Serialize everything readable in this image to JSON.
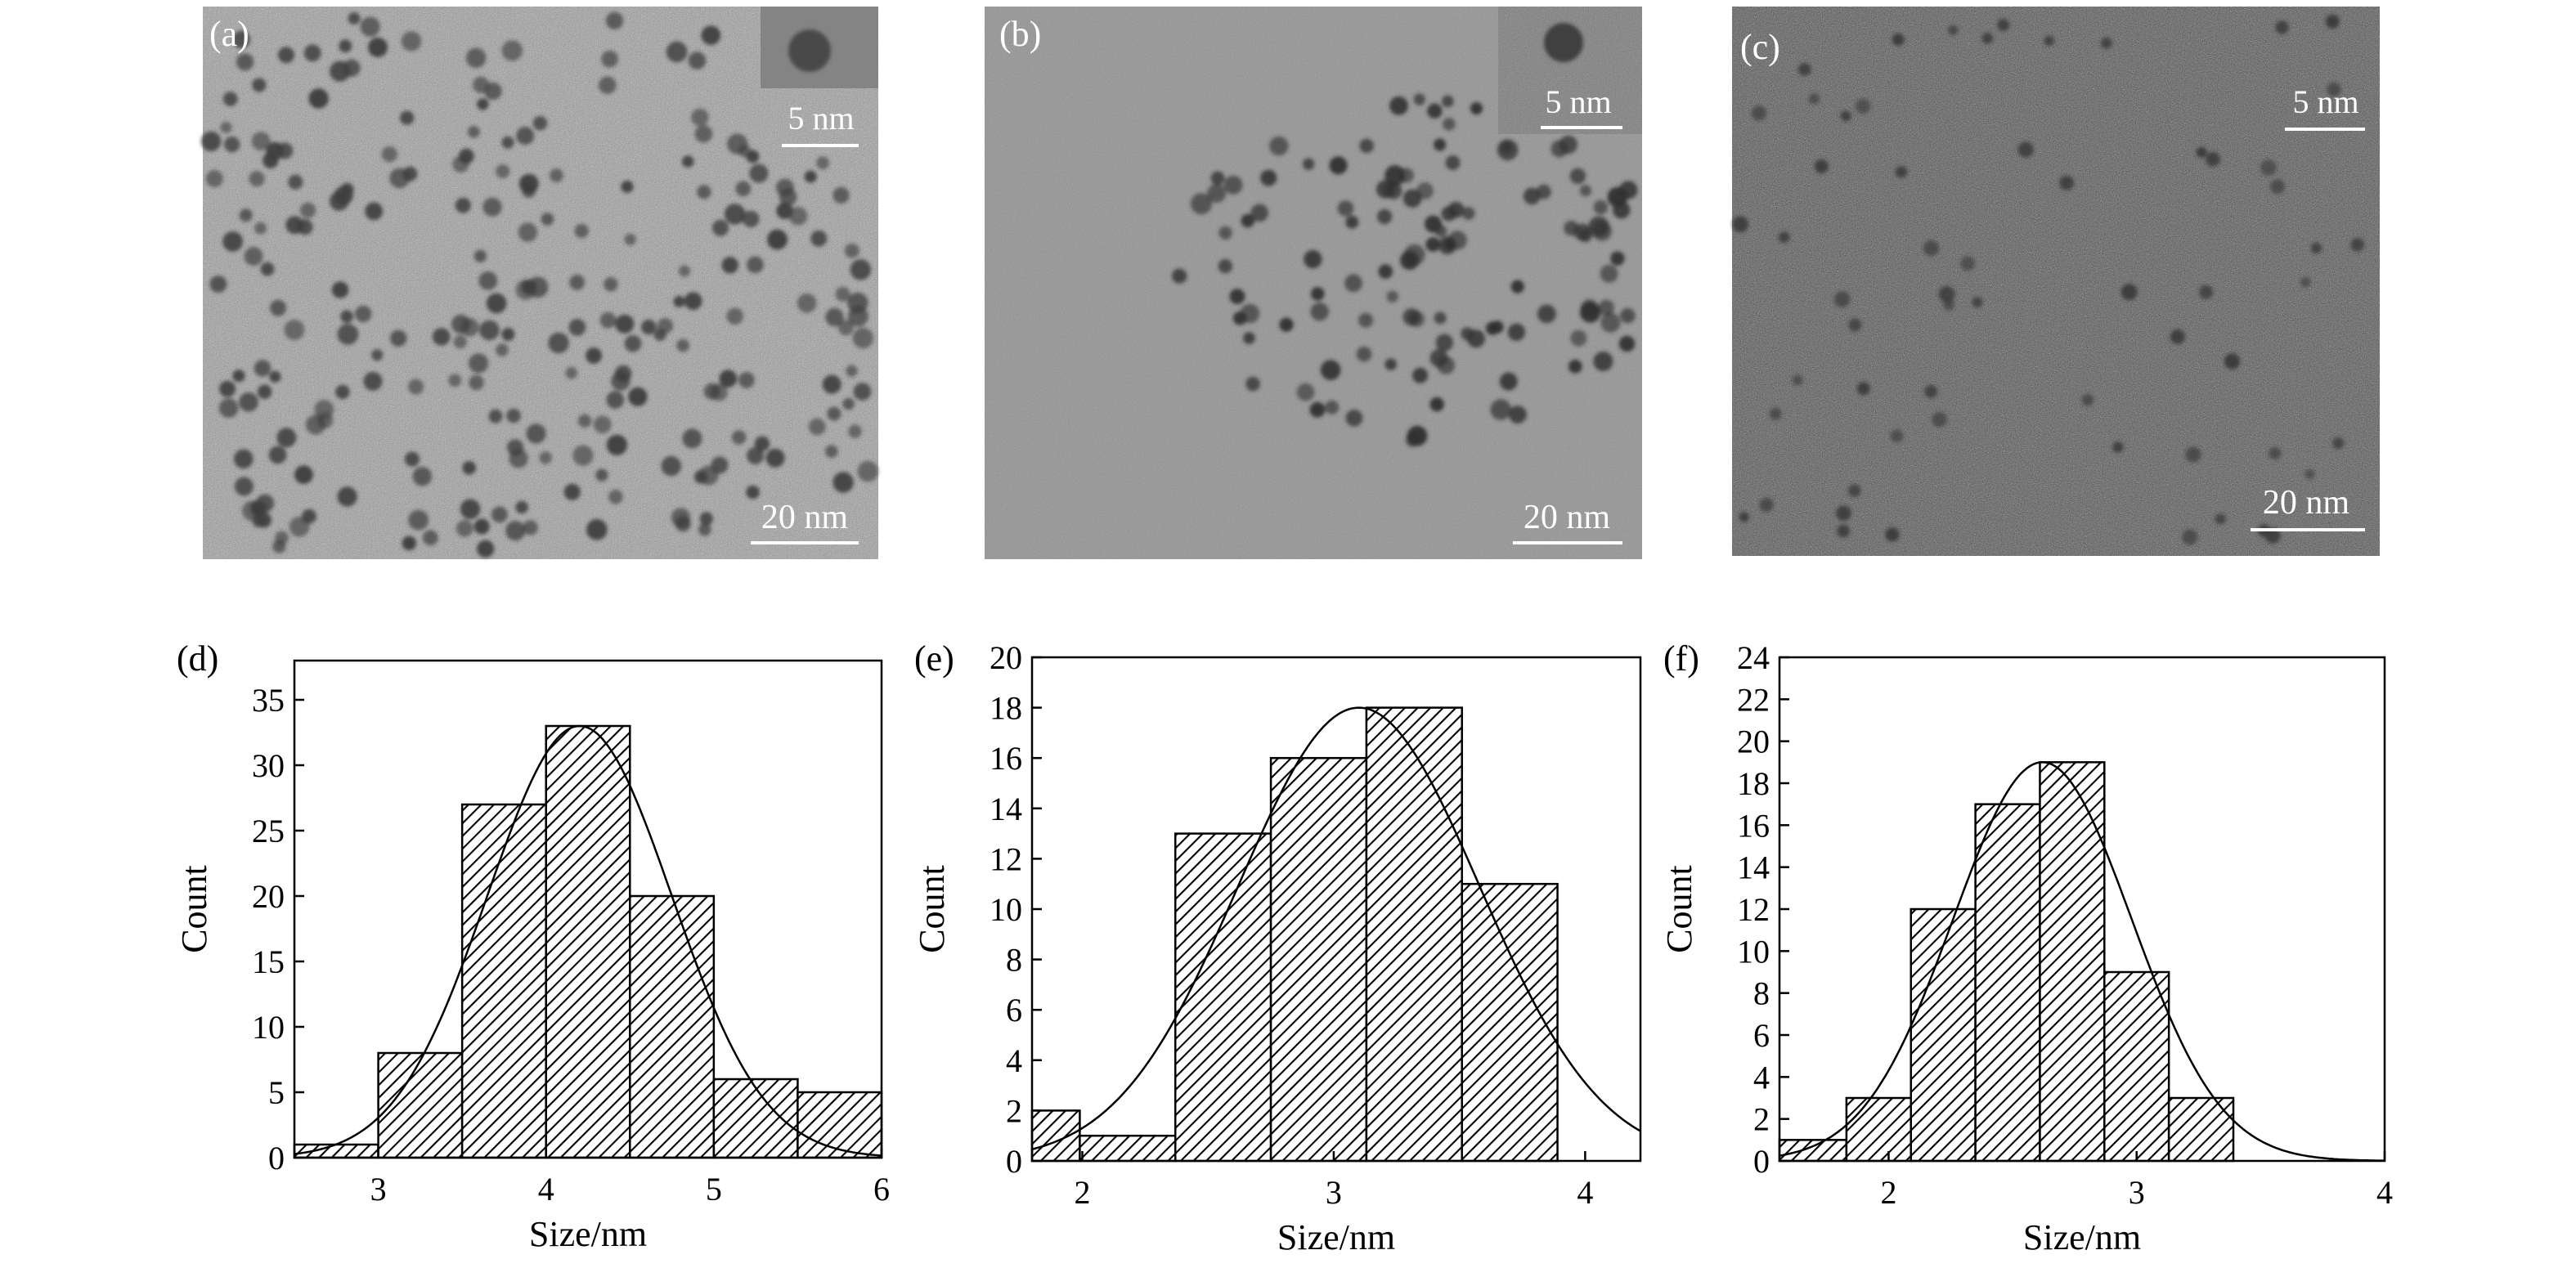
{
  "micrographs": [
    {
      "panel_label": "(a)",
      "scale_bar_main": "20 nm",
      "scale_bar_inset": "5 nm",
      "particle_tone": "#3d3d3d",
      "background_tone": "#9a9a9a"
    },
    {
      "panel_label": "(b)",
      "scale_bar_main": "20 nm",
      "scale_bar_inset": "5 nm",
      "particle_tone": "#2f2f2f",
      "background_tone": "#8c8c8c"
    },
    {
      "panel_label": "(c)",
      "scale_bar_main": "20 nm",
      "scale_bar_inset": "5 nm",
      "particle_tone": "#3a3a3a",
      "background_tone": "#5a5a5a"
    }
  ],
  "chart_data": [
    {
      "type": "bar",
      "panel_label": "(d)",
      "xlabel": "Size/nm",
      "ylabel": "Count",
      "xlim": [
        2.5,
        6
      ],
      "ylim": [
        0,
        38
      ],
      "xticks": [
        3,
        4,
        5,
        6
      ],
      "yticks": [
        0,
        5,
        10,
        15,
        20,
        25,
        30,
        35
      ],
      "bins": [
        {
          "x0": 2.5,
          "x1": 3.0,
          "count": 1
        },
        {
          "x0": 3.0,
          "x1": 3.5,
          "count": 8
        },
        {
          "x0": 3.5,
          "x1": 4.0,
          "count": 27
        },
        {
          "x0": 4.0,
          "x1": 4.5,
          "count": 33
        },
        {
          "x0": 4.5,
          "x1": 5.0,
          "count": 20
        },
        {
          "x0": 5.0,
          "x1": 5.5,
          "count": 6
        },
        {
          "x0": 5.5,
          "x1": 6.0,
          "count": 5
        }
      ],
      "fit": {
        "type": "gaussian",
        "mean": 4.2,
        "sigma": 0.55,
        "peak": 33
      }
    },
    {
      "type": "bar",
      "panel_label": "(e)",
      "xlabel": "Size/nm",
      "ylabel": "Count",
      "xlim": [
        1.8,
        4.22
      ],
      "ylim": [
        0,
        20
      ],
      "xticks": [
        2,
        3,
        4
      ],
      "yticks": [
        0,
        2,
        4,
        6,
        8,
        10,
        12,
        14,
        16,
        18,
        20
      ],
      "bins": [
        {
          "x0": 1.8,
          "x1": 1.99,
          "count": 2
        },
        {
          "x0": 1.99,
          "x1": 2.37,
          "count": 1
        },
        {
          "x0": 2.37,
          "x1": 2.75,
          "count": 13
        },
        {
          "x0": 2.75,
          "x1": 3.13,
          "count": 16
        },
        {
          "x0": 3.13,
          "x1": 3.51,
          "count": 18
        },
        {
          "x0": 3.51,
          "x1": 3.89,
          "count": 11
        }
      ],
      "fit": {
        "type": "gaussian",
        "mean": 3.1,
        "sigma": 0.48,
        "peak": 18
      }
    },
    {
      "type": "bar",
      "panel_label": "(f)",
      "xlabel": "Size/nm",
      "ylabel": "Count",
      "xlim": [
        1.56,
        4.0
      ],
      "ylim": [
        0,
        24
      ],
      "xticks": [
        2,
        3,
        4
      ],
      "yticks": [
        0,
        2,
        4,
        6,
        8,
        10,
        12,
        14,
        16,
        18,
        20,
        22,
        24
      ],
      "bins": [
        {
          "x0": 1.56,
          "x1": 1.83,
          "count": 1
        },
        {
          "x0": 1.83,
          "x1": 2.09,
          "count": 3
        },
        {
          "x0": 2.09,
          "x1": 2.35,
          "count": 12
        },
        {
          "x0": 2.35,
          "x1": 2.61,
          "count": 17
        },
        {
          "x0": 2.61,
          "x1": 2.87,
          "count": 19
        },
        {
          "x0": 2.87,
          "x1": 3.13,
          "count": 9
        },
        {
          "x0": 3.13,
          "x1": 3.39,
          "count": 3
        }
      ],
      "fit": {
        "type": "gaussian",
        "mean": 2.62,
        "sigma": 0.36,
        "peak": 19
      }
    }
  ]
}
